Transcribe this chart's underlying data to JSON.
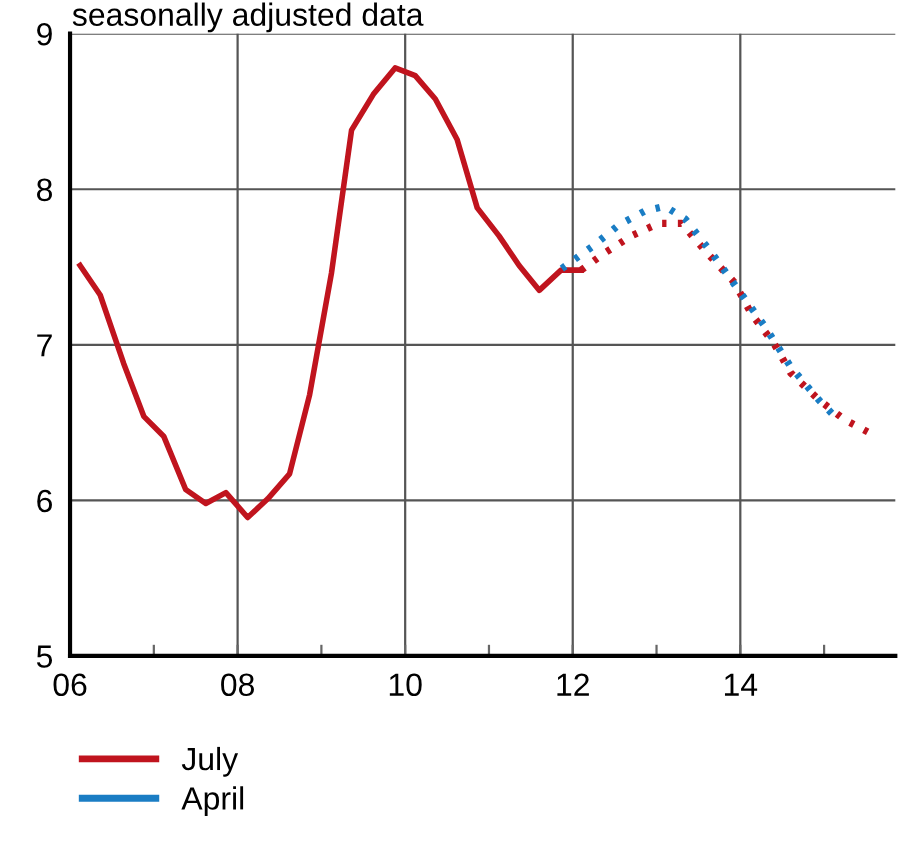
{
  "chart_data": {
    "type": "line",
    "subtitle": "seasonally adjusted data",
    "series": [
      {
        "name": "July",
        "color": "#c0141e",
        "line_style": "solid",
        "x": [
          2006.12,
          2006.36,
          2006.64,
          2006.88,
          2007.12,
          2007.38,
          2007.62,
          2007.86,
          2008.12,
          2008.36,
          2008.62,
          2008.86,
          2009.12,
          2009.36,
          2009.62,
          2009.88,
          2010.12,
          2010.36,
          2010.62,
          2010.86,
          2011.12,
          2011.36,
          2011.6,
          2011.86,
          2012.1
        ],
        "values": [
          7.51,
          7.32,
          6.88,
          6.54,
          6.41,
          6.07,
          5.98,
          6.05,
          5.89,
          6.01,
          6.17,
          6.68,
          7.46,
          8.38,
          8.61,
          8.78,
          8.73,
          8.58,
          8.32,
          7.88,
          7.7,
          7.51,
          7.35,
          7.48,
          7.48
        ]
      },
      {
        "color": "#c0141e",
        "line_style": "dotted",
        "x": [
          2012.1,
          2012.38,
          2012.7,
          2013.02,
          2013.3,
          2013.57,
          2013.93,
          2014.13,
          2014.4,
          2014.6,
          2014.93,
          2015.24,
          2015.52
        ],
        "values": [
          7.48,
          7.59,
          7.7,
          7.78,
          7.78,
          7.61,
          7.4,
          7.2,
          7.01,
          6.82,
          6.65,
          6.52,
          6.44
        ]
      },
      {
        "name": "April",
        "color": "#1a7dc4",
        "line_style": "dotted",
        "x": [
          2011.87,
          2012.23,
          2012.55,
          2012.86,
          2013.1,
          2013.34,
          2013.66,
          2013.98,
          2014.29,
          2014.6,
          2014.93,
          2015.09
        ],
        "values": [
          7.49,
          7.63,
          7.77,
          7.86,
          7.89,
          7.81,
          7.59,
          7.35,
          7.12,
          6.86,
          6.65,
          6.56
        ]
      }
    ],
    "xlim": [
      2006,
      2015.85
    ],
    "xticks": [
      {
        "value": 2006,
        "label": "06"
      },
      {
        "value": 2007,
        "label": null
      },
      {
        "value": 2008,
        "label": "08"
      },
      {
        "value": 2009,
        "label": null
      },
      {
        "value": 2010,
        "label": "10"
      },
      {
        "value": 2011,
        "label": null
      },
      {
        "value": 2012,
        "label": "12"
      },
      {
        "value": 2013,
        "label": null
      },
      {
        "value": 2014,
        "label": "14"
      },
      {
        "value": 2015,
        "label": null
      }
    ],
    "ylim": [
      5,
      9
    ],
    "yticks": [
      5,
      6,
      7,
      8,
      9
    ],
    "grid": true,
    "legend": "bottom left",
    "marker": "none"
  }
}
